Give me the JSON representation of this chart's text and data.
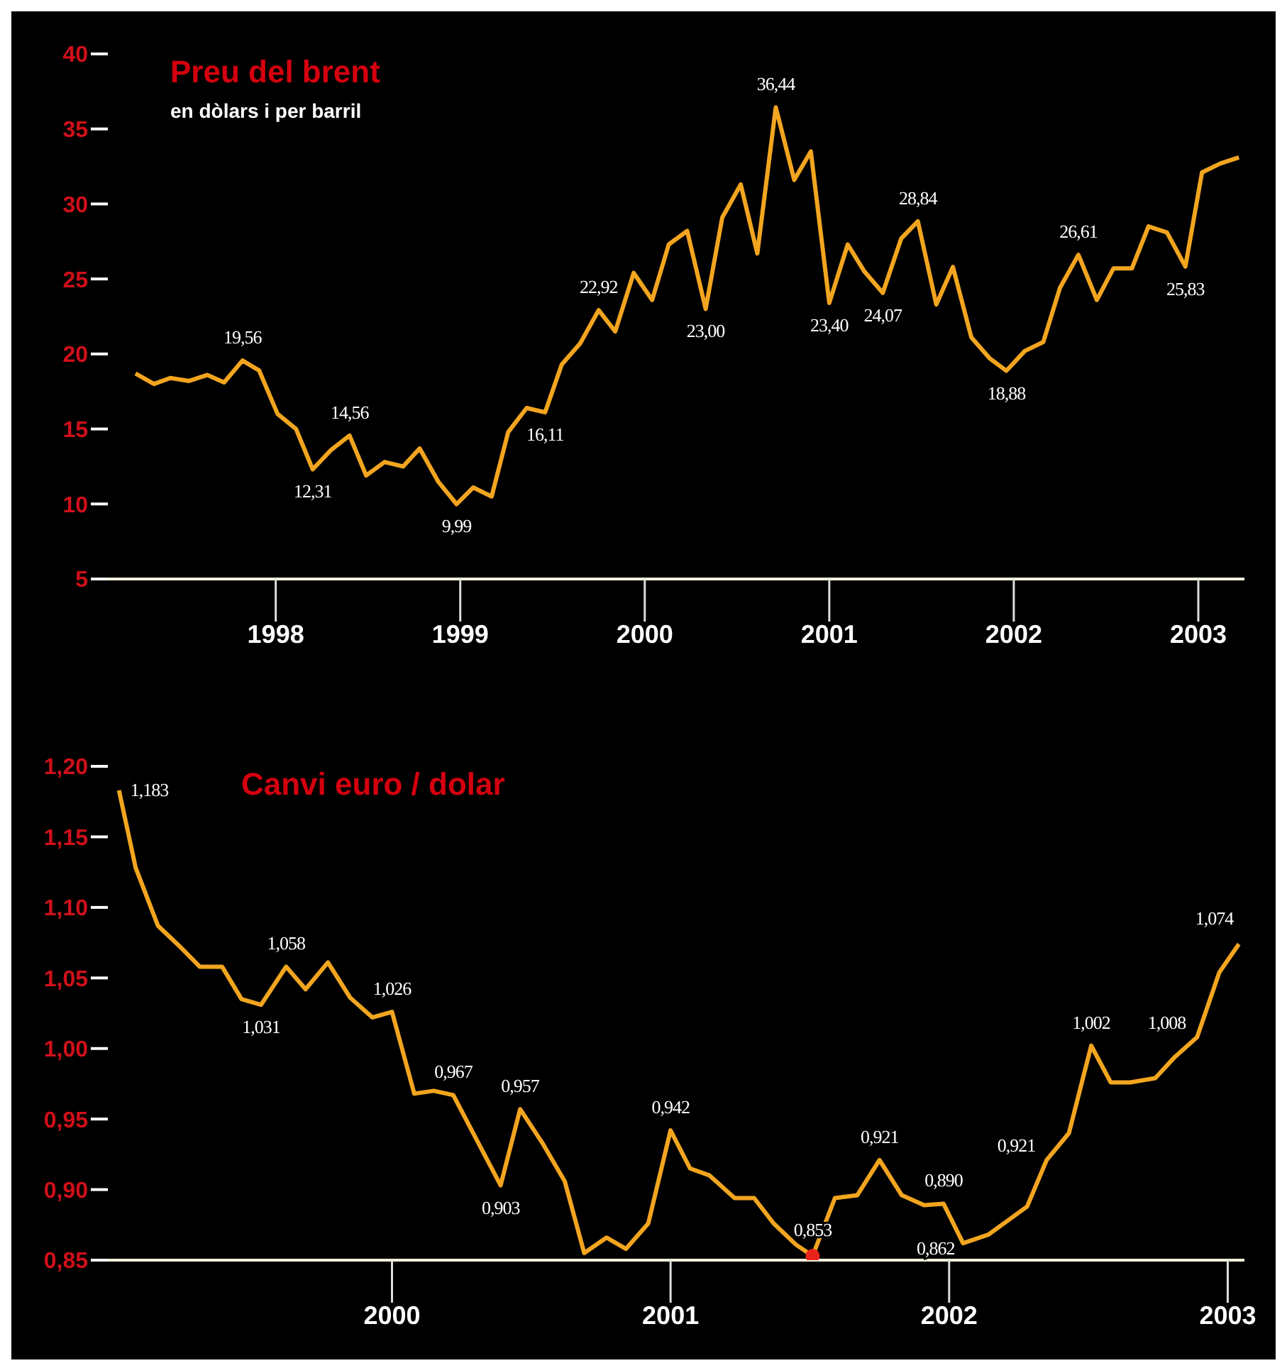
{
  "chart_data": [
    {
      "type": "line",
      "title": "Preu del brent",
      "subtitle": "en dòlars i per barril",
      "color": "#f2a51f",
      "x": [
        1997.24,
        1997.34,
        1997.43,
        1997.53,
        1997.63,
        1997.72,
        1997.82,
        1997.91,
        1998.01,
        1998.11,
        1998.2,
        1998.3,
        1998.4,
        1998.49,
        1998.59,
        1998.69,
        1998.78,
        1998.88,
        1998.98,
        1999.07,
        1999.17,
        1999.26,
        1999.36,
        1999.46,
        1999.55,
        1999.65,
        1999.75,
        1999.84,
        1999.94,
        2000.04,
        2000.13,
        2000.23,
        2000.33,
        2000.42,
        2000.52,
        2000.61,
        2000.71,
        2000.81,
        2000.9,
        2001.0,
        2001.1,
        2001.19,
        2001.29,
        2001.39,
        2001.48,
        2001.58,
        2001.67,
        2001.77,
        2001.87,
        2001.96,
        2002.06,
        2002.16,
        2002.25,
        2002.35,
        2002.45,
        2002.54,
        2002.64,
        2002.73,
        2002.83,
        2002.93,
        2003.02,
        2003.12,
        2003.22
      ],
      "values": [
        18.7,
        18.0,
        18.4,
        18.2,
        18.6,
        18.1,
        19.56,
        18.9,
        16.0,
        15.0,
        12.31,
        13.6,
        14.56,
        11.9,
        12.8,
        12.5,
        13.7,
        11.5,
        9.99,
        11.1,
        10.5,
        14.8,
        16.4,
        16.11,
        19.3,
        20.7,
        22.92,
        21.5,
        25.4,
        23.6,
        27.3,
        28.2,
        23.0,
        29.1,
        31.3,
        26.7,
        36.44,
        31.6,
        33.5,
        23.4,
        27.3,
        25.5,
        24.07,
        27.7,
        28.84,
        23.3,
        25.8,
        21.1,
        19.7,
        18.88,
        20.2,
        20.8,
        24.4,
        26.61,
        23.6,
        25.7,
        25.7,
        28.5,
        28.1,
        25.83,
        32.1,
        32.7,
        33.1
      ],
      "value_labels": [
        null,
        null,
        null,
        null,
        null,
        null,
        "19,56",
        null,
        null,
        null,
        "12,31",
        null,
        "14,56",
        null,
        null,
        null,
        null,
        null,
        "9,99",
        null,
        null,
        null,
        null,
        "16,11",
        null,
        null,
        "22,92",
        null,
        null,
        null,
        null,
        null,
        "23,00",
        null,
        null,
        null,
        "36,44",
        null,
        null,
        "23,40",
        null,
        null,
        "24,07",
        null,
        "28,84",
        null,
        null,
        null,
        null,
        "18,88",
        null,
        null,
        null,
        "26,61",
        null,
        null,
        null,
        null,
        null,
        "25,83",
        null,
        null,
        null
      ],
      "xlim": [
        1997.09,
        2003.25
      ],
      "xticks": [
        1998,
        1999,
        2000,
        2001,
        2002,
        2003
      ],
      "ylim": [
        5,
        40
      ],
      "yticks": [
        5,
        10,
        15,
        20,
        25,
        30,
        35,
        40
      ]
    },
    {
      "type": "line",
      "title": "Canvi euro / dolar",
      "x": [
        1999.02,
        1999.08,
        1999.16,
        1999.24,
        1999.31,
        1999.39,
        1999.46,
        1999.53,
        1999.62,
        1999.69,
        1999.77,
        1999.85,
        1999.93,
        2000.0,
        2000.08,
        2000.15,
        2000.22,
        2000.31,
        2000.39,
        2000.46,
        2000.54,
        2000.62,
        2000.69,
        2000.77,
        2000.84,
        2000.92,
        2001.0,
        2001.07,
        2001.14,
        2001.23,
        2001.3,
        2001.37,
        2001.45,
        2001.51,
        2001.59,
        2001.67,
        2001.75,
        2001.83,
        2001.91,
        2001.98,
        2002.05,
        2002.14,
        2002.21,
        2002.28,
        2002.35,
        2002.43,
        2002.51,
        2002.58,
        2002.65,
        2002.74,
        2002.81,
        2002.89,
        2002.97,
        2003.04
      ],
      "series": [
        {
          "type": "line",
          "color": "#f2a51f",
          "values": [
            1.183,
            1.128,
            1.087,
            1.072,
            1.058,
            1.058,
            1.035,
            1.031,
            1.058,
            1.042,
            1.061,
            1.036,
            1.022,
            1.026,
            0.968,
            0.97,
            0.967,
            0.933,
            0.903,
            0.957,
            0.933,
            0.906,
            0.855,
            0.866,
            0.858,
            0.876,
            0.942,
            0.915,
            0.91,
            0.894,
            0.894,
            0.876,
            0.861,
            0.853,
            0.894,
            0.896,
            0.921,
            0.896,
            0.889,
            0.89,
            0.862,
            0.868,
            0.878,
            0.888,
            0.921,
            0.94,
            1.002,
            0.976,
            0.976,
            0.979,
            0.994,
            1.008,
            1.054,
            1.074
          ],
          "value_labels": [
            "1,183",
            null,
            null,
            null,
            null,
            null,
            null,
            "1,031",
            "1,058",
            null,
            null,
            null,
            null,
            "1,026",
            null,
            null,
            "0,967",
            null,
            "0,903",
            "0,957",
            null,
            null,
            null,
            null,
            null,
            null,
            "0,942",
            null,
            null,
            null,
            null,
            null,
            null,
            "0,853",
            null,
            null,
            "0,921",
            null,
            null,
            "0,890",
            "0,862",
            null,
            null,
            null,
            "0,921",
            null,
            "1,002",
            null,
            null,
            null,
            null,
            "1,008",
            null,
            "1,074"
          ]
        },
        {
          "type": "scatter",
          "x": [
            2001.51
          ],
          "values": [
            0.853
          ],
          "color": "#e8231c"
        }
      ],
      "xlim": [
        1998.98,
        2003.06
      ],
      "xticks": [
        2000,
        2001,
        2002,
        2003
      ],
      "ylim": [
        0.85,
        1.2
      ],
      "yticks": [
        {
          "value": 0.85,
          "label": "0,85"
        },
        {
          "value": 0.9,
          "label": "0,90"
        },
        {
          "value": 0.95,
          "label": "0,95"
        },
        {
          "value": 1.0,
          "label": "1,00"
        },
        {
          "value": 1.05,
          "label": "1,05"
        },
        {
          "value": 1.1,
          "label": "1,10"
        },
        {
          "value": 1.15,
          "label": "1,15"
        },
        {
          "value": 1.2,
          "label": "1,20"
        }
      ]
    }
  ]
}
